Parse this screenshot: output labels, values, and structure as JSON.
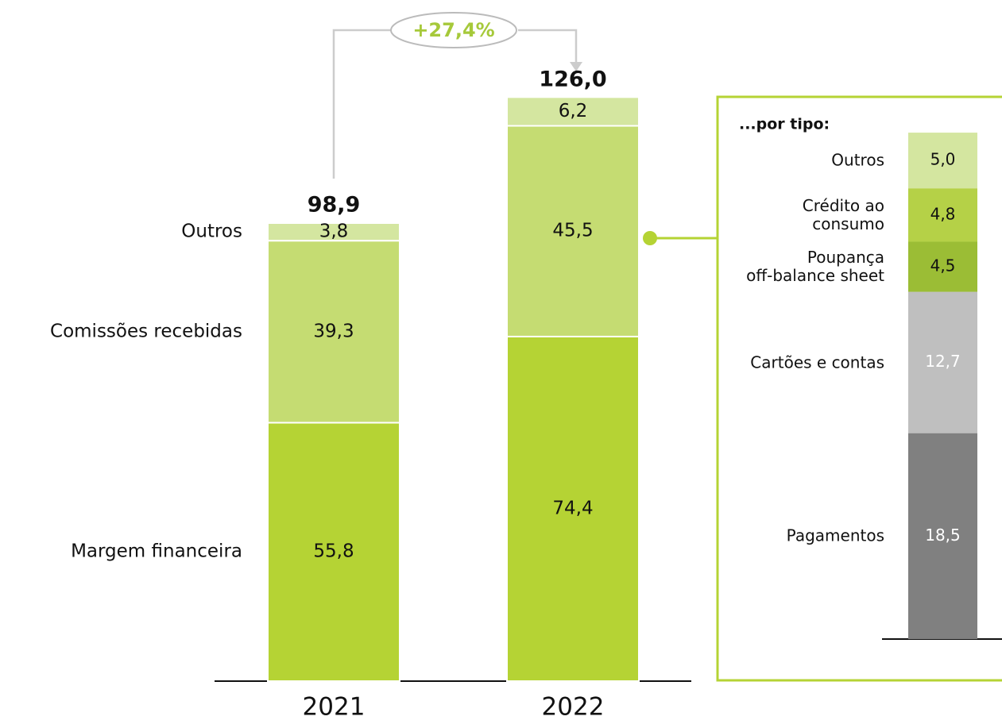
{
  "chart_data": [
    {
      "type": "stacked-bar",
      "annotation": "+27,4%",
      "categories": [
        "2021",
        "2022"
      ],
      "series": [
        {
          "name": "Margem financeira",
          "color": "#b5d334",
          "values": [
            55.8,
            74.4
          ],
          "value_labels": [
            "55,8",
            "74,4"
          ]
        },
        {
          "name": "Comissões recebidas",
          "color": "#c5dc72",
          "values": [
            39.3,
            45.5
          ],
          "value_labels": [
            "39,3",
            "45,5"
          ]
        },
        {
          "name": "Outros",
          "color": "#d4e6a0",
          "values": [
            3.8,
            6.2
          ],
          "value_labels": [
            "3,8",
            "6,2"
          ]
        }
      ],
      "totals": {
        "values": [
          98.9,
          126.0
        ],
        "value_labels": [
          "98,9",
          "126,0"
        ]
      }
    },
    {
      "type": "stacked-bar",
      "title": "...por tipo:",
      "categories": [
        "Outros",
        "Crédito ao\nconsumo",
        "Poupança\noff-balance sheet",
        "Cartões e contas",
        "Pagamentos"
      ],
      "values": [
        5.0,
        4.8,
        4.5,
        12.7,
        18.5
      ],
      "value_labels": [
        "5,0",
        "4,8",
        "4,5",
        "12,7",
        "18,5"
      ],
      "colors": [
        "#d4e6a0",
        "#b5d147",
        "#9bbd35",
        "#bfbfbf",
        "#808080"
      ]
    }
  ]
}
